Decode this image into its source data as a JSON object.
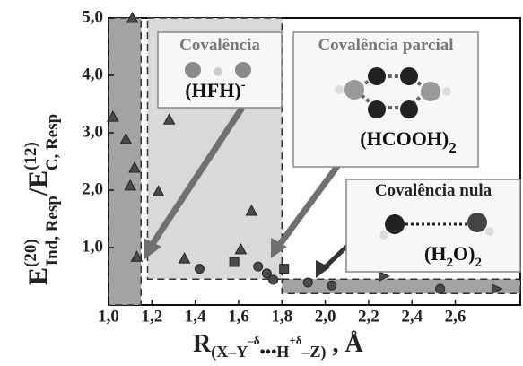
{
  "chart_data": {
    "type": "scatter",
    "xlim": [
      1.0,
      2.9
    ],
    "ylim": [
      0,
      5
    ],
    "xticks": [
      {
        "value": 1.0,
        "label": "1,0"
      },
      {
        "value": 1.2,
        "label": "1,2"
      },
      {
        "value": 1.4,
        "label": "1,4"
      },
      {
        "value": 1.6,
        "label": "1,6"
      },
      {
        "value": 1.8,
        "label": "1,8"
      },
      {
        "value": 2.0,
        "label": "2,0"
      },
      {
        "value": 2.2,
        "label": "2,2"
      },
      {
        "value": 2.4,
        "label": "2,4"
      },
      {
        "value": 2.6,
        "label": "2,6"
      }
    ],
    "yticks": [
      {
        "value": 1,
        "label": "1,0"
      },
      {
        "value": 2,
        "label": "2,0"
      },
      {
        "value": 3,
        "label": "3,0"
      },
      {
        "value": 4,
        "label": "4,0"
      },
      {
        "value": 5,
        "label": "5,0"
      }
    ],
    "x_label": [
      "R",
      "(X–Y",
      "–δ",
      "•••H",
      "+δ",
      "–Z)",
      " , Å"
    ],
    "y_label": [
      "E",
      "(20)",
      "Ind, Resp",
      "/E",
      "(12)",
      "C, Resp"
    ],
    "regions": [
      {
        "color": "#a3a3a3",
        "x": [
          1.0,
          1.15
        ],
        "y": [
          0,
          5
        ]
      },
      {
        "color": "#d9d9d9",
        "x": [
          1.18,
          1.8
        ],
        "y": [
          0.45,
          5
        ]
      },
      {
        "color": "#a3a3a3",
        "x": [
          1.8,
          2.9
        ],
        "y": [
          0.2,
          0.45
        ]
      }
    ],
    "annotations": [
      {
        "label": "Covalência",
        "molecule": [
          "(HFH)",
          "-"
        ]
      },
      {
        "label": "Covalência parcial",
        "molecule": [
          "(HCOOH)",
          "2"
        ]
      },
      {
        "label": "Covalência nula",
        "molecule": [
          "(H",
          "2",
          "O)",
          "2"
        ]
      }
    ],
    "series": [
      {
        "marker": "triangle",
        "color": "#4a4a4a",
        "x": [
          1.02,
          1.08,
          1.12,
          1.1,
          1.13,
          1.28,
          1.23,
          1.35,
          1.66,
          1.61,
          1.11
        ],
        "values": [
          3.28,
          2.89,
          2.39,
          2.08,
          0.84,
          3.23,
          1.98,
          0.81,
          1.64,
          0.97,
          5.0
        ]
      },
      {
        "marker": "circle",
        "color": "#4a4a4a",
        "x": [
          1.42,
          1.69,
          1.73,
          1.76,
          1.92,
          2.03,
          2.53
        ],
        "values": [
          0.63,
          0.67,
          0.55,
          0.44,
          0.39,
          0.34,
          0.28
        ]
      },
      {
        "marker": "square",
        "color": "#4a4a4a",
        "x": [
          1.58,
          1.81
        ],
        "values": [
          0.75,
          0.63
        ]
      },
      {
        "marker": "right-triangle",
        "color": "#4a4a4a",
        "x": [
          2.27,
          2.79
        ],
        "values": [
          0.5,
          0.28
        ]
      }
    ]
  }
}
